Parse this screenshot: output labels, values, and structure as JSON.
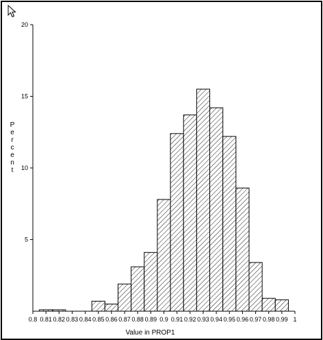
{
  "chart_data": {
    "type": "bar",
    "title": "",
    "xlabel": "Value in PROP1",
    "ylabel": "Percent",
    "xlim": [
      0.8,
      1.0
    ],
    "ylim": [
      0,
      20
    ],
    "x_ticks": [
      0.8,
      0.81,
      0.82,
      0.83,
      0.84,
      0.85,
      0.86,
      0.87,
      0.88,
      0.89,
      0.9,
      0.91,
      0.92,
      0.93,
      0.94,
      0.95,
      0.96,
      0.97,
      0.98,
      0.99,
      1.0
    ],
    "x_tick_labels": [
      "0.8",
      "0.81",
      "0.82",
      "0.83",
      "0.84",
      "0.85",
      "0.86",
      "0.87",
      "0.88",
      "0.89",
      "0.9",
      "0.91",
      "0.92",
      "0.93",
      "0.94",
      "0.95",
      "0.96",
      "0.97",
      "0.98",
      "0.99",
      "1"
    ],
    "y_ticks": [
      5,
      10,
      15,
      20
    ],
    "y_tick_labels": [
      "5",
      "10",
      "15",
      "20"
    ],
    "bin_width": 0.01,
    "bins": [
      {
        "start": 0.805,
        "value": 0.1
      },
      {
        "start": 0.815,
        "value": 0.1
      },
      {
        "start": 0.845,
        "value": 0.7
      },
      {
        "start": 0.855,
        "value": 0.5
      },
      {
        "start": 0.865,
        "value": 1.9
      },
      {
        "start": 0.875,
        "value": 3.1
      },
      {
        "start": 0.885,
        "value": 4.1
      },
      {
        "start": 0.895,
        "value": 7.8
      },
      {
        "start": 0.905,
        "value": 12.4
      },
      {
        "start": 0.915,
        "value": 13.7
      },
      {
        "start": 0.925,
        "value": 15.5
      },
      {
        "start": 0.935,
        "value": 14.2
      },
      {
        "start": 0.945,
        "value": 12.2
      },
      {
        "start": 0.955,
        "value": 8.6
      },
      {
        "start": 0.965,
        "value": 3.4
      },
      {
        "start": 0.975,
        "value": 0.9
      },
      {
        "start": 0.985,
        "value": 0.8
      }
    ],
    "fill_pattern": "diagonal-hatch",
    "bar_color": "#000000",
    "grid": false,
    "legend": "none"
  },
  "cursor": {
    "icon": "arrow-cursor-icon"
  }
}
